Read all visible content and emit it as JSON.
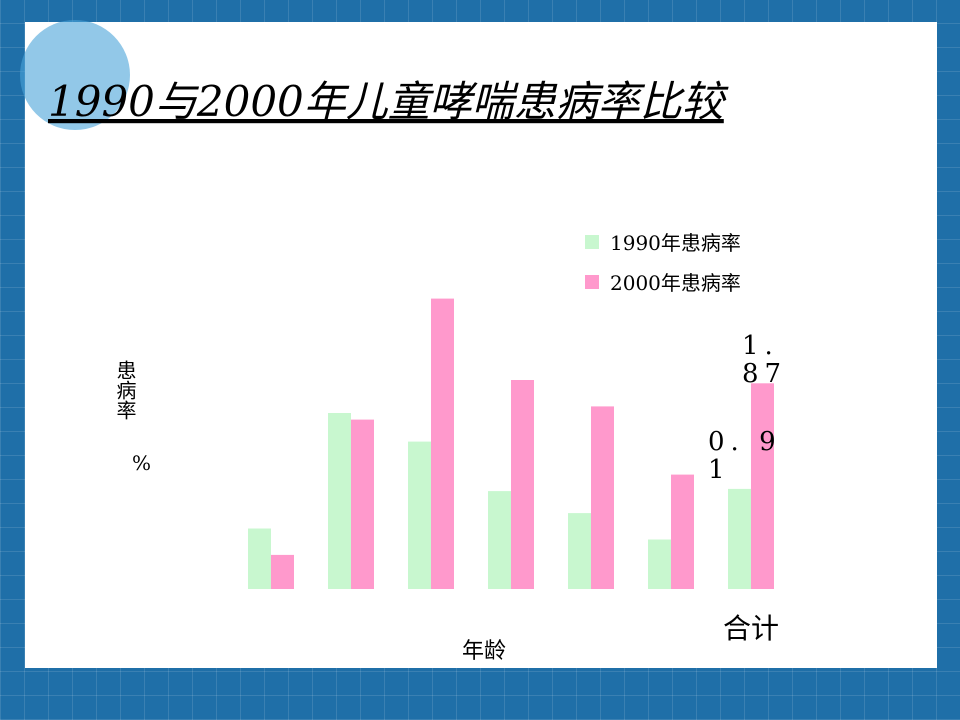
{
  "chart_data": {
    "type": "bar",
    "title": "1990与2000年儿童哮喘患病率比较",
    "categories": [
      null,
      null,
      null,
      null,
      null,
      null,
      "合计"
    ],
    "series": [
      {
        "name": "1990年患病率",
        "color": "#c8f7cf",
        "values": [
          0.55,
          1.6,
          1.34,
          0.89,
          0.69,
          0.45,
          0.91
        ],
        "value_labels": [
          null,
          null,
          null,
          null,
          null,
          null,
          "0. 91"
        ]
      },
      {
        "name": "2000年患病率",
        "color": "#ff99cc",
        "values": [
          0.31,
          1.54,
          2.64,
          1.9,
          1.66,
          1.04,
          1.87
        ],
        "value_labels": [
          null,
          null,
          null,
          null,
          null,
          null,
          "1. 87"
        ]
      }
    ],
    "ylabel": "患病率",
    "ylabel_unit": "%",
    "xlabel": "年龄",
    "ylim": [
      0,
      2.8
    ],
    "grid": false
  }
}
